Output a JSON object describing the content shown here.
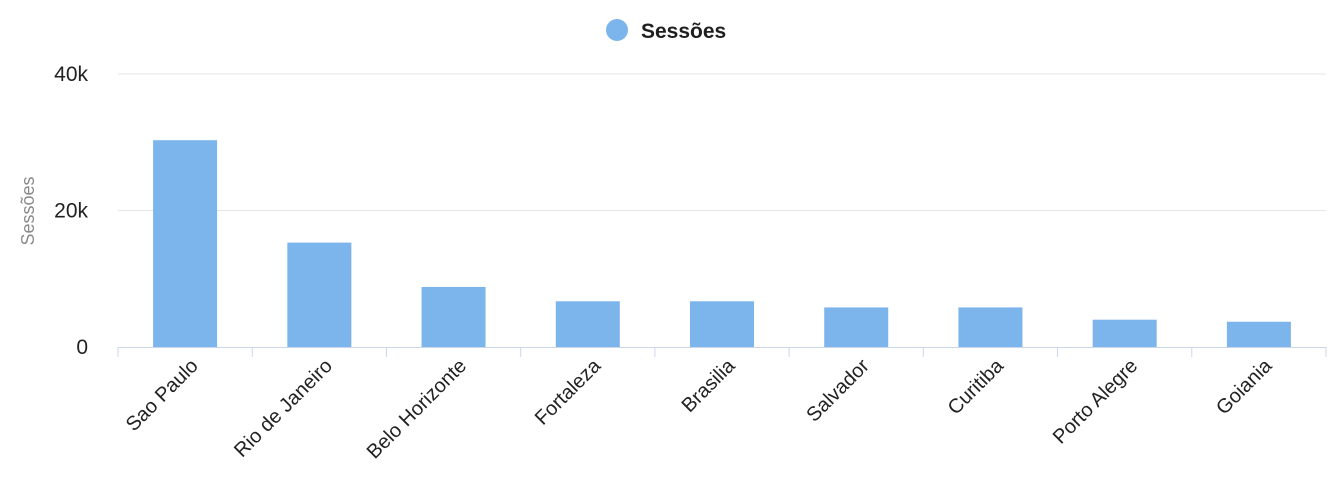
{
  "chart_data": {
    "type": "bar",
    "title": "",
    "xlabel": "",
    "ylabel": "Sessões",
    "legend": {
      "entries": [
        "Sessões"
      ],
      "placement": "top-center"
    },
    "categories": [
      "Sao Paulo",
      "Rio de Janeiro",
      "Belo Horizonte",
      "Fortaleza",
      "Brasilia",
      "Salvador",
      "Curitiba",
      "Porto Alegre",
      "Goiania"
    ],
    "series": [
      {
        "name": "Sessões",
        "color": "#7cb4ec",
        "values": [
          30300,
          15300,
          8800,
          6700,
          6700,
          5800,
          5800,
          4000,
          3700
        ]
      }
    ],
    "ylim": [
      0,
      40000
    ],
    "yticks": [
      0,
      20000,
      40000
    ],
    "ytick_labels": [
      "0",
      "20k",
      "40k"
    ],
    "grid": true
  }
}
